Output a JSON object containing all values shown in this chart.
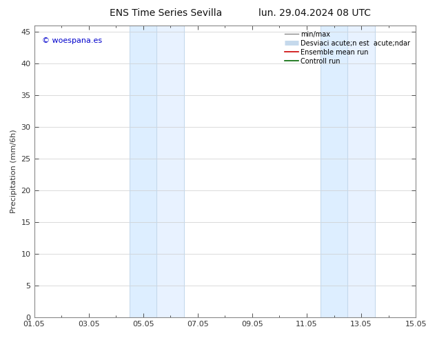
{
  "title_left": "ENS Time Series Sevilla",
  "title_right": "lun. 29.04.2024 08 UTC",
  "ylabel": "Precipitation (mm/6h)",
  "watermark": "© woespana.es",
  "watermark_color": "#0000cc",
  "xlim": [
    0.0,
    14.0
  ],
  "ylim": [
    0,
    46
  ],
  "yticks": [
    0,
    5,
    10,
    15,
    20,
    25,
    30,
    35,
    40,
    45
  ],
  "xtick_positions": [
    0,
    2,
    4,
    6,
    8,
    10,
    12,
    14
  ],
  "xtick_labels": [
    "01.05",
    "03.05",
    "05.05",
    "07.05",
    "09.05",
    "11.05",
    "13.05",
    "15.05"
  ],
  "shaded_bands": [
    {
      "xmin": 3.5,
      "xmax": 4.5
    },
    {
      "xmin": 4.5,
      "xmax": 5.5
    },
    {
      "xmin": 10.5,
      "xmax": 11.5
    },
    {
      "xmin": 11.5,
      "xmax": 12.5
    }
  ],
  "band_colors": [
    "#ddeeff",
    "#e8f2ff",
    "#ddeeff",
    "#e8f2ff"
  ],
  "band_edge_color": "#c5d9ec",
  "legend_label_minmax": "min/max",
  "legend_label_std": "Desviaci acute;n est  acute;ndar",
  "legend_label_ensemble": "Ensemble mean run",
  "legend_label_control": "Controll run",
  "legend_color_minmax": "#888888",
  "legend_color_std": "#c5d9ec",
  "legend_color_ensemble": "#cc0000",
  "legend_color_control": "#006600",
  "background_color": "#ffffff",
  "plot_bg_color": "#ffffff",
  "grid_color": "#cccccc",
  "spine_color": "#888888",
  "tick_color": "#333333",
  "title_fontsize": 10,
  "label_fontsize": 8,
  "tick_fontsize": 8,
  "legend_fontsize": 7,
  "watermark_fontsize": 8
}
